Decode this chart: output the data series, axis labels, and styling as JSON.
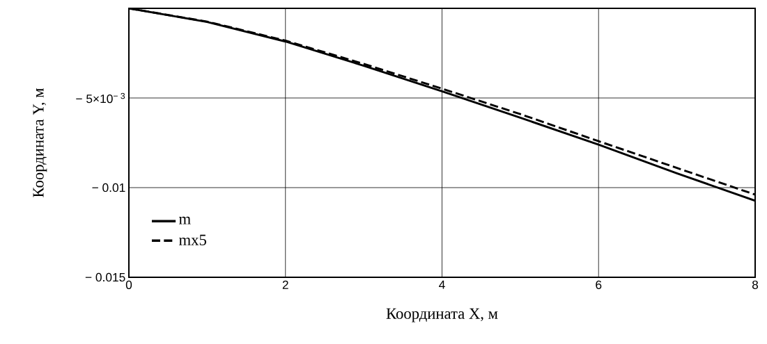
{
  "chart_data": {
    "type": "line",
    "xlabel": "Координата X, м",
    "ylabel": "Координата Y, м",
    "x": [
      0,
      1,
      2,
      3,
      4,
      5,
      6,
      7,
      8
    ],
    "series": [
      {
        "name": "m",
        "color": "#000000",
        "line_style": "solid",
        "values": [
          0,
          -0.00076,
          -0.00185,
          -0.0032,
          -0.00463,
          -0.0061,
          -0.0076,
          -0.0092,
          -0.01073
        ]
      },
      {
        "name": "mx5",
        "color": "#000000",
        "line_style": "dashed",
        "values": [
          0,
          -0.00074,
          -0.0018,
          -0.0031,
          -0.00448,
          -0.0059,
          -0.00741,
          -0.0089,
          -0.01039
        ]
      }
    ],
    "xlim": [
      0,
      8
    ],
    "ylim": [
      -0.015,
      0
    ],
    "xticks": [
      0,
      2,
      4,
      6,
      8
    ],
    "yticks": [
      {
        "value": -0.015,
        "label": "− 0.015"
      },
      {
        "value": -0.01,
        "label": "− 0.01"
      },
      {
        "value": -0.005,
        "label": "− 5×10$^{− 3}$"
      }
    ],
    "grid": true,
    "legend": "bottom left",
    "marker": "none"
  }
}
